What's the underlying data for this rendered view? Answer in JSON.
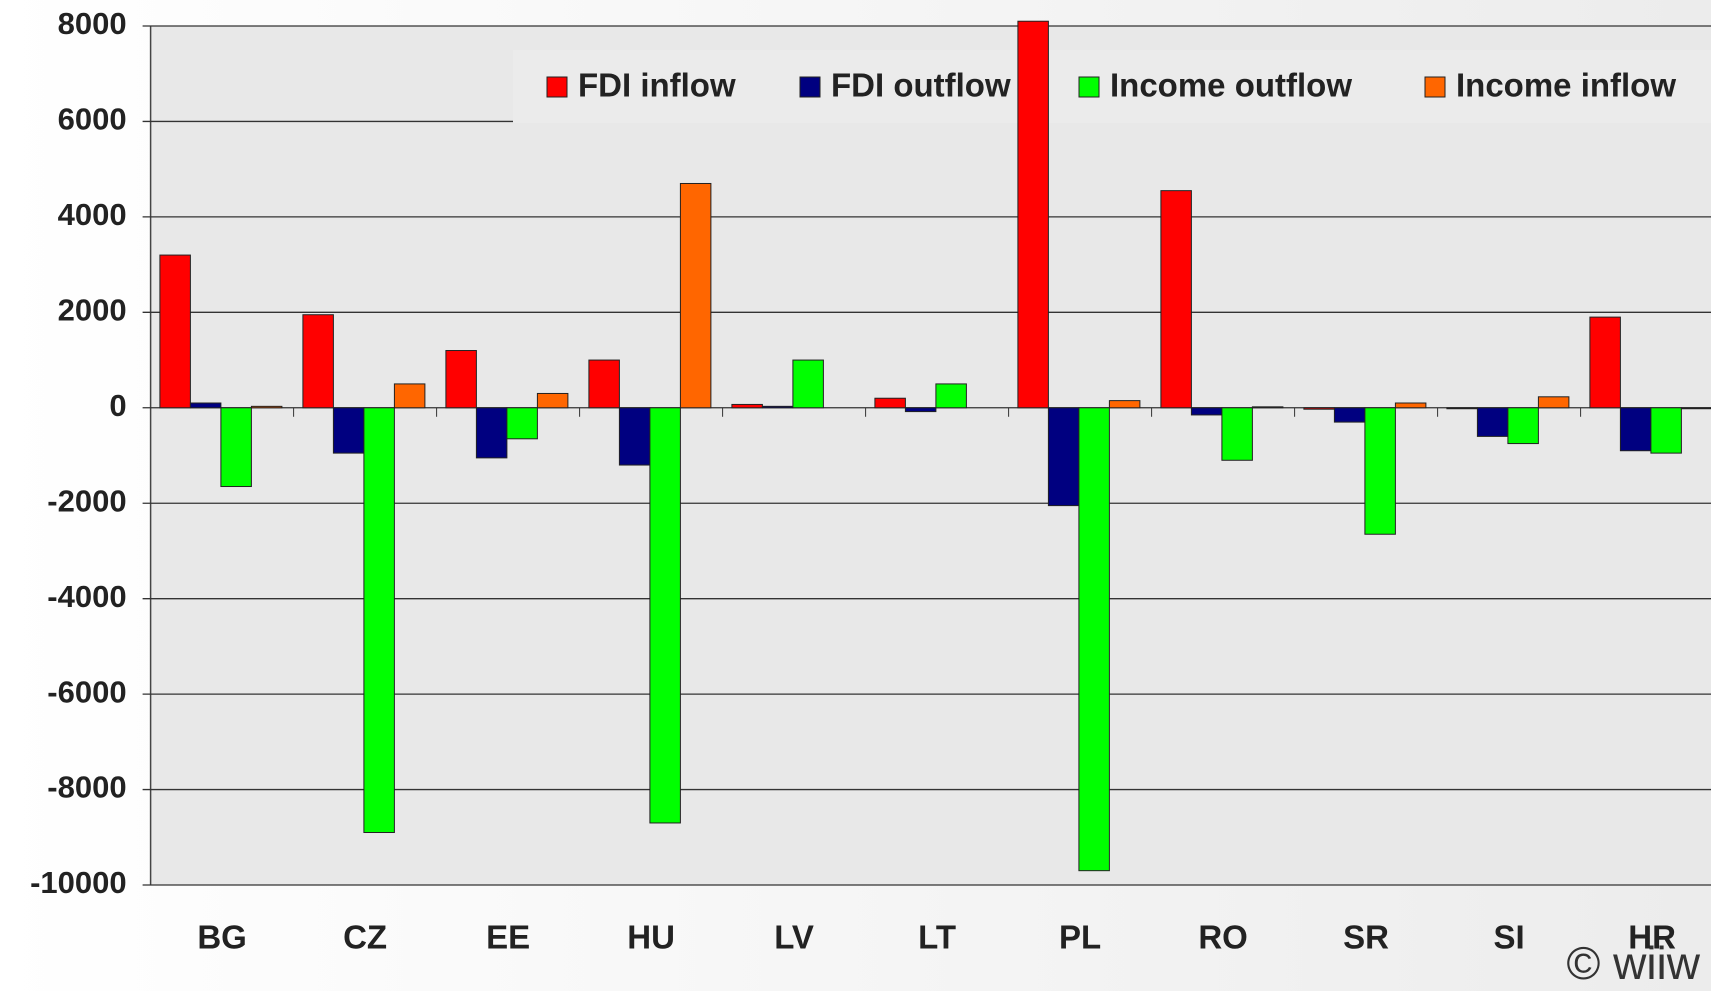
{
  "chart_data": {
    "type": "bar",
    "categories": [
      "BG",
      "CZ",
      "EE",
      "HU",
      "LV",
      "LT",
      "PL",
      "RO",
      "SR",
      "SI",
      "HR"
    ],
    "series": [
      {
        "name": "FDI inflow",
        "color": "#ff0000",
        "values": [
          3200,
          1950,
          1200,
          1000,
          70,
          200,
          8100,
          4550,
          -30,
          -20,
          1900
        ]
      },
      {
        "name": "FDI outflow",
        "color": "#000080",
        "values": [
          100,
          -950,
          -1050,
          -1200,
          30,
          -80,
          -2050,
          -150,
          -300,
          -600,
          -900
        ]
      },
      {
        "name": "Income outflow",
        "color": "#00ff00",
        "values": [
          -1650,
          -8900,
          -650,
          -8700,
          1000,
          500,
          -9700,
          -1100,
          -2650,
          -750,
          -950
        ]
      },
      {
        "name": "Income inflow",
        "color": "#ff6600",
        "values": [
          30,
          500,
          300,
          4700,
          0,
          0,
          150,
          20,
          100,
          230,
          -20
        ]
      }
    ],
    "ylim": [
      -10000,
      8000
    ],
    "yticks": [
      -10000,
      -8000,
      -6000,
      -4000,
      -2000,
      0,
      2000,
      4000,
      6000,
      8000
    ],
    "grid": true,
    "legend": "top",
    "annotation": "© wiiw"
  }
}
